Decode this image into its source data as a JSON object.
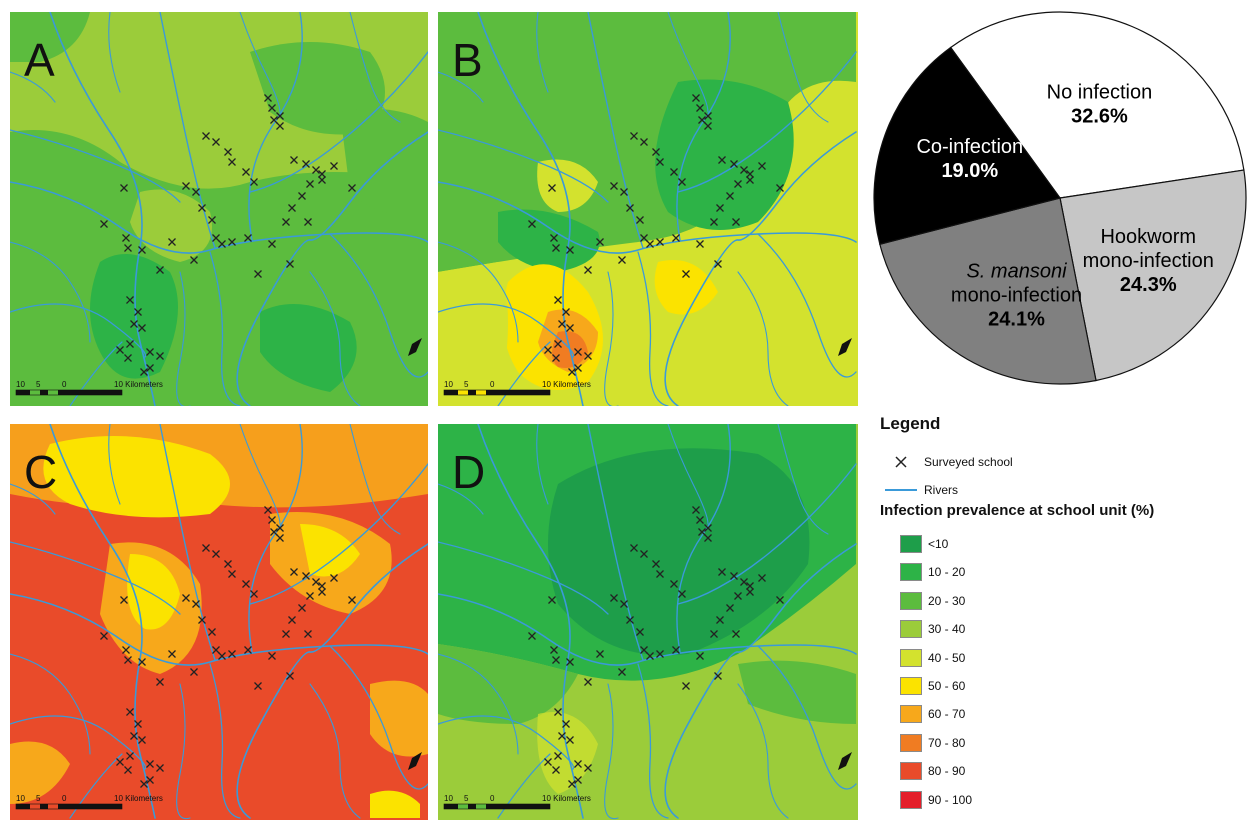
{
  "panels": [
    {
      "id": "a",
      "letter": "A",
      "scale_label": "10 Kilometers",
      "scale_ticks": [
        "10",
        "5",
        "0"
      ]
    },
    {
      "id": "b",
      "letter": "B",
      "scale_label": "10 Kilometers",
      "scale_ticks": [
        "10",
        "5",
        "0"
      ]
    },
    {
      "id": "c",
      "letter": "C",
      "scale_label": "10 Kilometers",
      "scale_ticks": [
        "10",
        "5",
        "0"
      ]
    },
    {
      "id": "d",
      "letter": "D",
      "scale_label": "10 Kilometers",
      "scale_ticks": [
        "10",
        "5",
        "0"
      ]
    }
  ],
  "pie": {
    "slices": [
      {
        "line1": "No infection",
        "line2": "",
        "pct_label": "32.6%",
        "value": 32.6,
        "color": "#ffffff",
        "text_color": "#000000"
      },
      {
        "line1": "Hookworm",
        "line2": "mono-infection",
        "pct_label": "24.3%",
        "value": 24.3,
        "color": "#c6c6c6",
        "text_color": "#000000"
      },
      {
        "line1": "S. mansoni",
        "line2": "mono-infection",
        "pct_label": "24.1%",
        "value": 24.1,
        "color": "#808080",
        "text_color": "#000000"
      },
      {
        "line1": "Co-infection",
        "line2": "",
        "pct_label": "19.0%",
        "value": 19.0,
        "color": "#000000",
        "text_color": "#ffffff"
      }
    ]
  },
  "legend": {
    "title": "Legend",
    "school_label": "Surveyed school",
    "rivers_label": "Rivers",
    "prevalence_title": "Infection prevalence at school unit (%)",
    "classes": [
      {
        "label": "<10",
        "color": "#1e9e4a"
      },
      {
        "label": "10 - 20",
        "color": "#2db347"
      },
      {
        "label": "20 - 30",
        "color": "#5cbc3e"
      },
      {
        "label": "30 - 40",
        "color": "#9bcc3a"
      },
      {
        "label": "40 - 50",
        "color": "#d3e22e"
      },
      {
        "label": "50 - 60",
        "color": "#fbe300"
      },
      {
        "label": "60 - 70",
        "color": "#f7a81b"
      },
      {
        "label": "70 - 80",
        "color": "#f07c22"
      },
      {
        "label": "80 - 90",
        "color": "#e94b2a"
      },
      {
        "label": "90 - 100",
        "color": "#e41e2a"
      }
    ],
    "river_color": "#3a9ad9"
  }
}
